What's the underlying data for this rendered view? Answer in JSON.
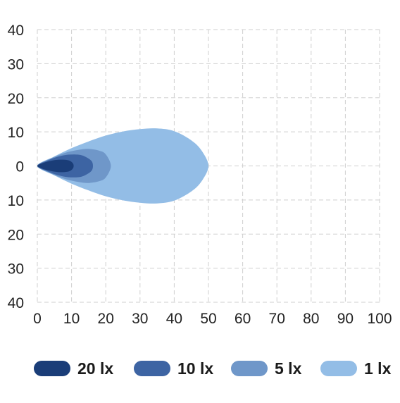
{
  "chart_data": {
    "type": "area",
    "title": "",
    "xlabel": "",
    "ylabel": "",
    "xlim": [
      0,
      100
    ],
    "ylim": [
      -40,
      40
    ],
    "x_ticks": [
      "0",
      "10",
      "20",
      "30",
      "40",
      "50",
      "60",
      "70",
      "80",
      "90",
      "100"
    ],
    "y_ticks": [
      "40",
      "30",
      "20",
      "10",
      "0",
      "10",
      "20",
      "30",
      "40"
    ],
    "grid": true,
    "legend_position": "bottom",
    "series": [
      {
        "name": "1 lx",
        "color": "#93bde6",
        "x": [
          0,
          5,
          10,
          15,
          20,
          25,
          30,
          35,
          40,
          45,
          48,
          50,
          48,
          45,
          40,
          35,
          30,
          25,
          20,
          15,
          10,
          5,
          0
        ],
        "y": [
          0,
          2.8,
          5.2,
          7.2,
          8.9,
          10.1,
          10.8,
          11,
          10.2,
          7.5,
          4.5,
          0,
          -4.5,
          -7.5,
          -10.2,
          -11,
          -10.8,
          -10.1,
          -8.9,
          -7.2,
          -5.2,
          -2.8,
          0
        ]
      },
      {
        "name": "5 lx",
        "color": "#6f97c9",
        "x": [
          0,
          4,
          8,
          12,
          15,
          18,
          20,
          21.5,
          20,
          18,
          15,
          12,
          8,
          4,
          0
        ],
        "y": [
          0,
          2.2,
          3.8,
          4.7,
          5,
          4.5,
          3.4,
          0,
          -3.4,
          -4.5,
          -5,
          -4.7,
          -3.8,
          -2.2,
          0
        ],
        "layer": 2
      },
      {
        "name": "10 lx",
        "color": "#3d64a3",
        "x": [
          0,
          3,
          6,
          9,
          12,
          14,
          16,
          16,
          14,
          12,
          9,
          6,
          3,
          0
        ],
        "y": [
          0,
          1.6,
          2.7,
          3.3,
          3.3,
          2.7,
          1.2,
          -1.2,
          -2.7,
          -3.3,
          -3.3,
          -2.7,
          -1.6,
          0
        ]
      },
      {
        "name": "20 lx",
        "color": "#1a3d78",
        "x": [
          0,
          2,
          4,
          6,
          8,
          9.5,
          10.5,
          10.5,
          9.5,
          8,
          6,
          4,
          2,
          0
        ],
        "y": [
          0,
          1,
          1.5,
          1.8,
          1.8,
          1.5,
          0.6,
          -0.6,
          -1.5,
          -1.8,
          -1.8,
          -1.5,
          -1,
          0
        ]
      }
    ],
    "legend": [
      {
        "label": "20 lx",
        "color": "#1a3d78"
      },
      {
        "label": "10 lx",
        "color": "#3d64a3"
      },
      {
        "label": "5 lx",
        "color": "#6f97c9"
      },
      {
        "label": "1 lx",
        "color": "#93bde6"
      }
    ]
  }
}
